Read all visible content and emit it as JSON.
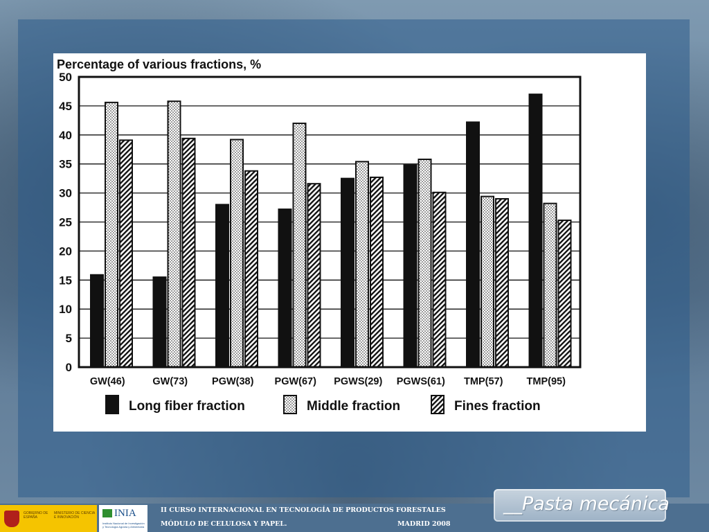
{
  "chart_data": {
    "type": "bar",
    "title": "Percentage of various fractions, %",
    "xlabel": "",
    "ylabel": "",
    "ylim": [
      0,
      50
    ],
    "yticks": [
      "0",
      "5",
      "10",
      "15",
      "20",
      "25",
      "30",
      "35",
      "40",
      "45",
      "50"
    ],
    "grid": "horizontal",
    "legend_position": "bottom",
    "categories": [
      "GW(46)",
      "GW(73)",
      "PGW(38)",
      "PGW(67)",
      "PGWS(29)",
      "PGWS(61)",
      "TMP(57)",
      "TMP(95)"
    ],
    "series": [
      {
        "name": "Long fiber fraction",
        "pattern": "solid",
        "values": [
          15.9,
          15.5,
          28.0,
          27.2,
          32.5,
          34.8,
          42.2,
          47.0
        ]
      },
      {
        "name": "Middle fraction",
        "pattern": "dotted",
        "values": [
          45.6,
          45.8,
          39.2,
          42.0,
          35.4,
          35.8,
          29.4,
          28.2
        ]
      },
      {
        "name": "Fines fraction",
        "pattern": "hatched",
        "values": [
          39.1,
          39.4,
          33.8,
          31.6,
          32.7,
          30.1,
          29.0,
          25.3
        ]
      }
    ]
  },
  "footer": {
    "course_line": "II CURSO INTERNACIONAL EN TECNOLOGÍA DE PRODUCTOS FORESTALES",
    "module_line": "MÓDULO DE CELULOSA Y PAPEL.",
    "place_line": "MADRID 2008",
    "gov_logo_text": "GOBIERNO DE ESPAÑA",
    "ministry_text": "MINISTERIO DE CIENCIA E INNOVACIÓN",
    "inia_logo_text": "INIA",
    "inia_sub_text": "Instituto Nacional de Investigación y Tecnología Agraria y Alimentaria"
  },
  "badge": {
    "label": "__Pasta mecánica"
  },
  "colors": {
    "panel_blue": "#2e5c8c",
    "bar_fill": "#111111",
    "badge": "#b3c3d3"
  }
}
